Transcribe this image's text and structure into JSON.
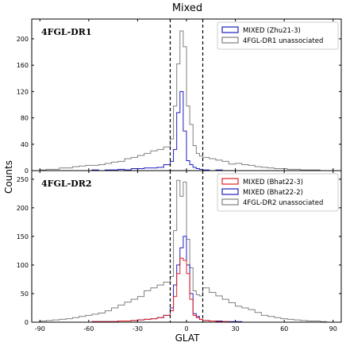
{
  "figure": {
    "title": "Mixed",
    "xlabel": "GLAT",
    "ylabel": "Counts"
  },
  "chart_data": [
    {
      "type": "histogram",
      "panel_label": "4FGL-DR1",
      "xlim": [
        -95,
        95
      ],
      "ylim": [
        0,
        230
      ],
      "xticks": [
        -90,
        -60,
        -30,
        0,
        30,
        60,
        90
      ],
      "yticks": [
        0,
        40,
        80,
        120,
        160,
        200
      ],
      "show_xtick_labels": false,
      "bin_edges": [
        -90,
        -86,
        -82,
        -78,
        -74,
        -70,
        -66,
        -62,
        -58,
        -54,
        -50,
        -46,
        -42,
        -38,
        -34,
        -30,
        -26,
        -22,
        -18,
        -14,
        -10,
        -8,
        -6,
        -4,
        -2,
        0,
        2,
        4,
        6,
        8,
        10,
        14,
        18,
        22,
        26,
        30,
        34,
        38,
        42,
        46,
        50,
        54,
        58,
        62,
        66,
        70,
        74,
        78,
        82,
        86,
        90
      ],
      "vlines": [
        -10,
        10
      ],
      "legend_position": "top-right",
      "series": [
        {
          "name": "MIXED (Zhu21-3)",
          "color": "#1f1fbf",
          "counts": [
            0,
            0,
            0,
            0,
            0,
            0,
            0,
            0,
            1,
            0,
            1,
            1,
            2,
            1,
            3,
            3,
            4,
            4,
            5,
            9,
            14,
            32,
            88,
            120,
            60,
            15,
            9,
            5,
            3,
            2,
            1,
            0,
            1,
            0,
            0,
            0,
            0,
            0,
            0,
            0,
            0,
            0,
            0,
            0,
            0,
            0,
            0,
            0,
            0,
            0
          ]
        },
        {
          "name": "4FGL-DR1 unassociated",
          "color": "#808080",
          "counts": [
            1,
            2,
            2,
            4,
            4,
            6,
            7,
            8,
            8,
            9,
            11,
            13,
            14,
            18,
            20,
            23,
            26,
            30,
            32,
            36,
            48,
            98,
            162,
            212,
            188,
            98,
            70,
            38,
            26,
            22,
            20,
            18,
            16,
            14,
            10,
            11,
            9,
            8,
            6,
            5,
            4,
            3,
            3,
            2,
            2,
            1,
            1,
            1,
            0,
            0
          ]
        }
      ]
    },
    {
      "type": "histogram",
      "panel_label": "4FGL-DR2",
      "xlim": [
        -95,
        95
      ],
      "ylim": [
        0,
        265
      ],
      "xticks": [
        -90,
        -60,
        -30,
        0,
        30,
        60,
        90
      ],
      "xtick_labels": [
        "-90",
        "-60",
        "-30",
        "0",
        "30",
        "60",
        "90"
      ],
      "yticks": [
        0,
        50,
        100,
        150,
        200,
        250
      ],
      "bin_edges": [
        -90,
        -86,
        -82,
        -78,
        -74,
        -70,
        -66,
        -62,
        -58,
        -54,
        -50,
        -46,
        -42,
        -38,
        -34,
        -30,
        -26,
        -22,
        -18,
        -14,
        -10,
        -8,
        -6,
        -4,
        -2,
        0,
        2,
        4,
        6,
        8,
        10,
        14,
        18,
        22,
        26,
        30,
        34,
        38,
        42,
        46,
        50,
        54,
        58,
        62,
        66,
        70,
        74,
        78,
        82,
        86,
        90
      ],
      "vlines": [
        -10,
        10
      ],
      "legend_position": "top-right",
      "series": [
        {
          "name": "MIXED (Bhat22-3)",
          "color": "#e02020",
          "counts": [
            0,
            0,
            0,
            0,
            0,
            0,
            0,
            0,
            1,
            1,
            1,
            1,
            2,
            2,
            3,
            4,
            5,
            6,
            8,
            12,
            20,
            45,
            85,
            112,
            108,
            85,
            40,
            12,
            8,
            5,
            3,
            2,
            1,
            1,
            0,
            0,
            0,
            0,
            0,
            0,
            0,
            0,
            0,
            0,
            0,
            0,
            0,
            0,
            0,
            0
          ]
        },
        {
          "name": "MIXED (Bhat22-2)",
          "color": "#1f1fbf",
          "counts": [
            0,
            0,
            0,
            0,
            0,
            0,
            0,
            0,
            1,
            1,
            1,
            1,
            2,
            2,
            3,
            4,
            5,
            6,
            8,
            12,
            25,
            65,
            100,
            130,
            150,
            100,
            50,
            15,
            10,
            5,
            3,
            2,
            2,
            1,
            1,
            1,
            0,
            0,
            0,
            0,
            0,
            0,
            0,
            0,
            0,
            0,
            0,
            0,
            0,
            0
          ]
        },
        {
          "name": "4FGL-DR2 unassociated",
          "color": "#808080",
          "counts": [
            2,
            3,
            4,
            5,
            6,
            8,
            10,
            12,
            14,
            16,
            20,
            25,
            30,
            35,
            40,
            45,
            55,
            60,
            65,
            70,
            80,
            160,
            248,
            220,
            245,
            145,
            95,
            55,
            48,
            46,
            60,
            52,
            46,
            40,
            34,
            28,
            25,
            22,
            17,
            12,
            10,
            8,
            6,
            5,
            4,
            3,
            2,
            2,
            1,
            0
          ]
        }
      ]
    }
  ]
}
